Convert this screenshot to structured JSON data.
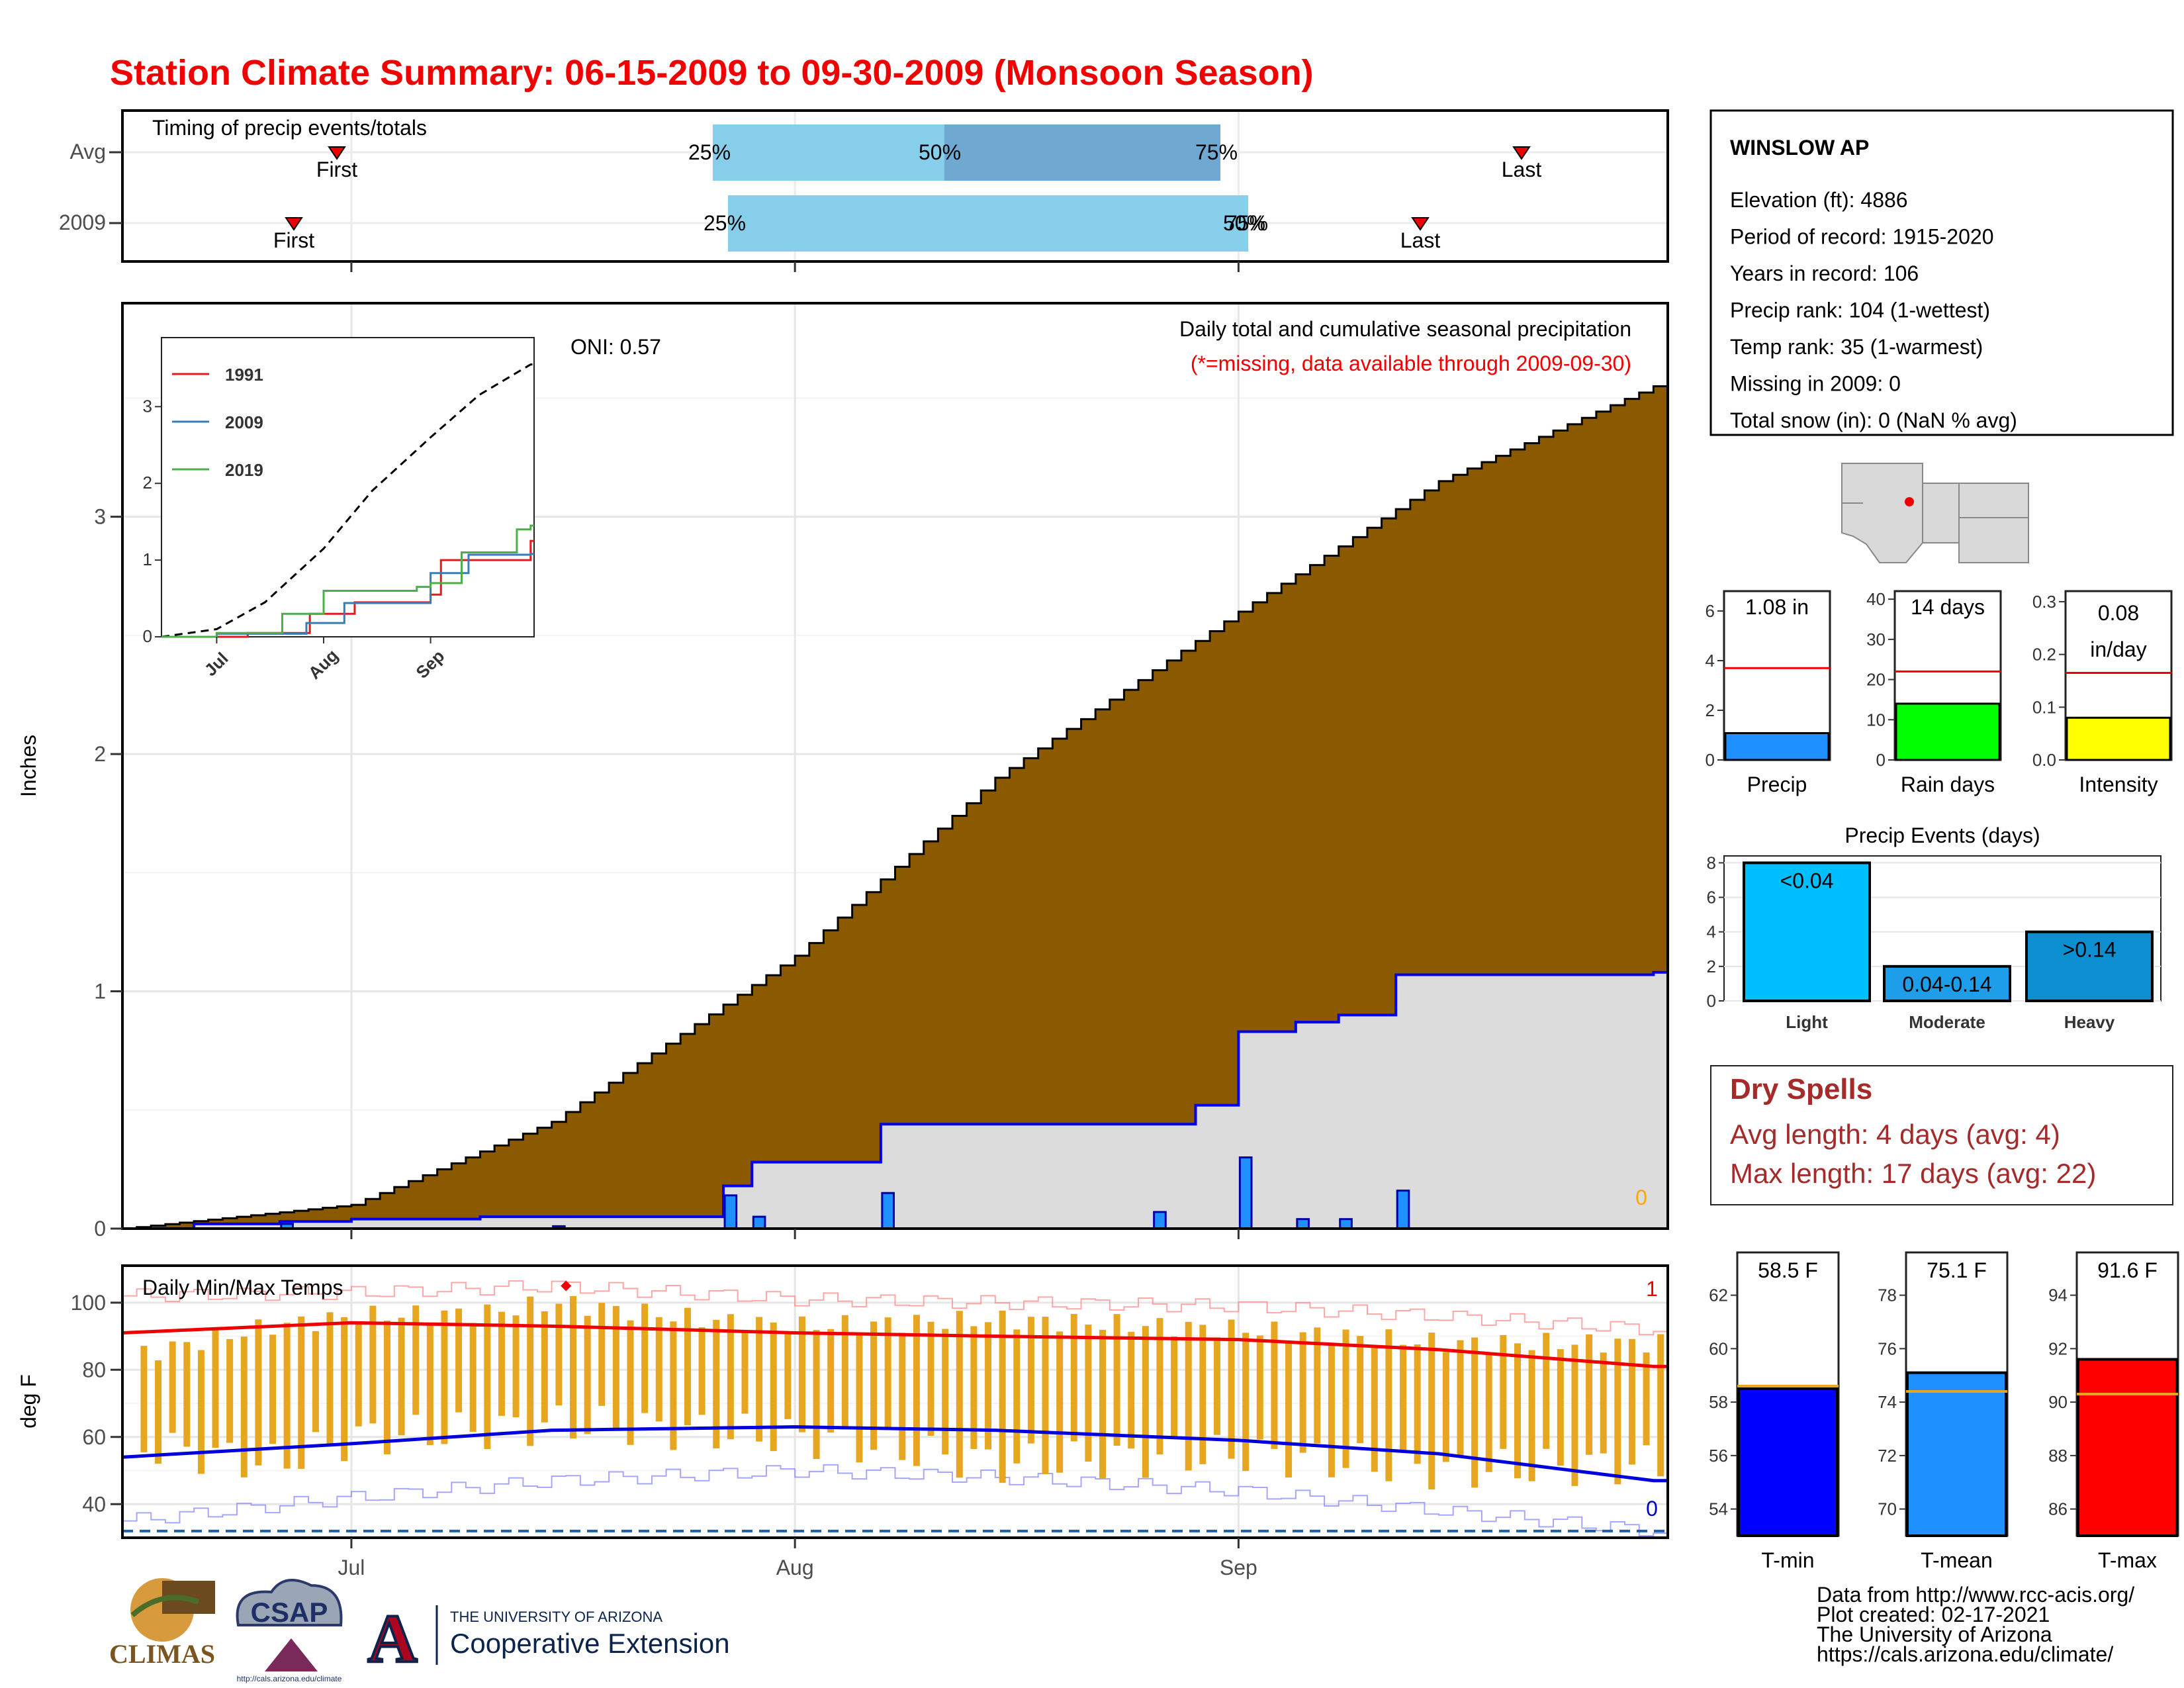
{
  "title": "Station Climate Summary: 06-15-2009 to 09-30-2009 (Monsoon Season)",
  "timing": {
    "label": "Timing of precip events/totals",
    "rows": [
      {
        "name": "Avg",
        "first_label": "First",
        "last_label": "Last",
        "p25": "25%",
        "p50": "50%",
        "p75": "75%"
      },
      {
        "name": "2009",
        "first_label": "First",
        "last_label": "Last",
        "p25": "25%",
        "p50": "50%",
        "p75": "75%"
      }
    ]
  },
  "precip_panel": {
    "caption": "Daily total and cumulative seasonal precipitation",
    "missing_note": "(*=missing, data available through 2009-09-30)",
    "oni": "ONI: 0.57",
    "ylabel": "Inches",
    "corner_count": "0"
  },
  "inset": {
    "legend": [
      {
        "name": "1991",
        "color": "#e41a1c"
      },
      {
        "name": "2009",
        "color": "#377eb8"
      },
      {
        "name": "2019",
        "color": "#4daf4a"
      }
    ],
    "xticks": [
      "Jul",
      "Aug",
      "Sep"
    ],
    "yticks": [
      "0",
      "1",
      "2",
      "3"
    ]
  },
  "temp_panel": {
    "label": "Daily Min/Max Temps",
    "ylabel": "deg F",
    "max_count": "1",
    "min_count": "0"
  },
  "xaxis": {
    "ticks": [
      "Jul",
      "Aug",
      "Sep"
    ]
  },
  "station": {
    "name": "WINSLOW AP",
    "lines": [
      "Elevation (ft): 4886",
      "Period of record: 1915-2020",
      "Years in record: 106",
      "Precip rank: 104 (1-wettest)",
      "Temp rank: 35 (1-warmest)",
      "Missing in 2009: 0",
      "Total snow (in): 0 (NaN % avg)"
    ]
  },
  "mini_bars": [
    {
      "label": "Precip",
      "value_text": "1.08 in",
      "value": 1.08,
      "avg": 3.7,
      "ymax": 6.8,
      "ticks": [
        "0",
        "2",
        "4",
        "6"
      ],
      "color": "#1e90ff"
    },
    {
      "label": "Rain days",
      "value_text": "14 days",
      "value": 14,
      "avg": 22,
      "ymax": 42,
      "ticks": [
        "0",
        "10",
        "20",
        "30",
        "40"
      ],
      "color": "#00ff00"
    },
    {
      "label": "Intensity",
      "value_text": "0.08 in/day",
      "value": 0.08,
      "avg": 0.165,
      "ymax": 0.32,
      "ticks": [
        "0.0",
        "0.1",
        "0.2",
        "0.3"
      ],
      "color": "#ffff00"
    }
  ],
  "precip_events": {
    "title": "Precip Events (days)",
    "ticks": [
      "0",
      "2",
      "4",
      "6",
      "8"
    ],
    "bars": [
      {
        "label": "Light",
        "text": "<0.04",
        "value": 8,
        "color": "#00bfff"
      },
      {
        "label": "Moderate",
        "text": "0.04-0.14",
        "value": 2,
        "color": "#1e9ee8"
      },
      {
        "label": "Heavy",
        "text": ">0.14",
        "value": 4,
        "color": "#0b8fd0"
      }
    ]
  },
  "dry_spells": {
    "title": "Dry Spells",
    "avg_line": "Avg length: 4 days (avg: 4)",
    "max_line": "Max length: 17 days (avg: 22)"
  },
  "temp_bars": [
    {
      "label": "T-min",
      "value_text": "58.5 F",
      "value": 58.5,
      "avg": 58.6,
      "min": 53,
      "max": 63.6,
      "ticks": [
        "54",
        "56",
        "58",
        "60",
        "62"
      ],
      "color": "#0000ff"
    },
    {
      "label": "T-mean",
      "value_text": "75.1 F",
      "value": 75.1,
      "avg": 74.4,
      "min": 69,
      "max": 79.6,
      "ticks": [
        "70",
        "72",
        "74",
        "76",
        "78"
      ],
      "color": "#1e90ff"
    },
    {
      "label": "T-max",
      "value_text": "91.6 F",
      "value": 91.6,
      "avg": 90.3,
      "min": 85,
      "max": 95.6,
      "ticks": [
        "86",
        "88",
        "90",
        "92",
        "94"
      ],
      "color": "#ff0000"
    }
  ],
  "credits": [
    "Data from http://www.rcc-acis.org/",
    "Plot created: 02-17-2021",
    "The University of Arizona",
    "https://cals.arizona.edu/climate/"
  ],
  "logos": {
    "climas": "CLIMAS",
    "csap": "CSAP",
    "csap_url": "http://cals.arizona.edu/climate",
    "ua_line1": "THE UNIVERSITY OF ARIZONA",
    "ua_line2": "Cooperative Extension",
    "ua_letter": "A"
  },
  "chart_data": [
    {
      "type": "area",
      "title": "Daily total and cumulative seasonal precipitation",
      "ylabel": "Inches",
      "ylim": [
        0,
        3.9
      ],
      "x_range": [
        "2009-06-15",
        "2009-09-30"
      ],
      "series": [
        {
          "name": "Average cumulative",
          "points": [
            [
              "2009-06-15",
              0
            ],
            [
              "2009-07-01",
              0.1
            ],
            [
              "2009-07-15",
              0.45
            ],
            [
              "2009-08-01",
              1.15
            ],
            [
              "2009-08-15",
              1.9
            ],
            [
              "2009-09-01",
              2.6
            ],
            [
              "2009-09-15",
              3.15
            ],
            [
              "2009-09-30",
              3.55
            ]
          ]
        },
        {
          "name": "2009 cumulative",
          "points": [
            [
              "2009-06-15",
              0
            ],
            [
              "2009-06-20",
              0.02
            ],
            [
              "2009-06-26",
              0.03
            ],
            [
              "2009-07-01",
              0.04
            ],
            [
              "2009-07-10",
              0.05
            ],
            [
              "2009-07-27",
              0.18
            ],
            [
              "2009-07-29",
              0.28
            ],
            [
              "2009-08-07",
              0.44
            ],
            [
              "2009-08-29",
              0.52
            ],
            [
              "2009-09-01",
              0.83
            ],
            [
              "2009-09-05",
              0.87
            ],
            [
              "2009-09-08",
              0.9
            ],
            [
              "2009-09-12",
              1.07
            ],
            [
              "2009-09-30",
              1.08
            ]
          ]
        },
        {
          "name": "2009 daily",
          "points": [
            [
              "2009-06-26",
              0.02
            ],
            [
              "2009-07-15",
              0.01
            ],
            [
              "2009-07-27",
              0.14
            ],
            [
              "2009-07-29",
              0.05
            ],
            [
              "2009-08-07",
              0.15
            ],
            [
              "2009-08-26",
              0.07
            ],
            [
              "2009-09-01",
              0.3
            ],
            [
              "2009-09-05",
              0.04
            ],
            [
              "2009-09-08",
              0.04
            ],
            [
              "2009-09-12",
              0.16
            ]
          ]
        }
      ]
    },
    {
      "type": "line",
      "ylim": [
        0,
        3.9
      ],
      "xticks": [
        "Jul",
        "Aug",
        "Sep"
      ],
      "series": [
        {
          "name": "Average",
          "points": [
            [
              "2009-06-15",
              0
            ],
            [
              "2009-07-01",
              0.1
            ],
            [
              "2009-07-15",
              0.45
            ],
            [
              "2009-08-01",
              1.15
            ],
            [
              "2009-08-15",
              1.9
            ],
            [
              "2009-09-01",
              2.6
            ],
            [
              "2009-09-15",
              3.15
            ],
            [
              "2009-09-30",
              3.55
            ]
          ]
        },
        {
          "name": "1991",
          "points": [
            [
              "2009-06-15",
              0
            ],
            [
              "2009-07-10",
              0.05
            ],
            [
              "2009-07-28",
              0.3
            ],
            [
              "2009-08-10",
              0.45
            ],
            [
              "2009-09-01",
              0.55
            ],
            [
              "2009-09-04",
              1.0
            ],
            [
              "2009-09-30",
              1.25
            ]
          ]
        },
        {
          "name": "2009",
          "points": [
            [
              "2009-06-15",
              0
            ],
            [
              "2009-07-01",
              0.04
            ],
            [
              "2009-07-27",
              0.18
            ],
            [
              "2009-08-07",
              0.44
            ],
            [
              "2009-09-01",
              0.83
            ],
            [
              "2009-09-12",
              1.07
            ],
            [
              "2009-09-30",
              1.08
            ]
          ]
        },
        {
          "name": "2019",
          "points": [
            [
              "2009-06-15",
              0
            ],
            [
              "2009-07-01",
              0.05
            ],
            [
              "2009-07-20",
              0.3
            ],
            [
              "2009-08-01",
              0.6
            ],
            [
              "2009-08-28",
              0.65
            ],
            [
              "2009-09-01",
              0.7
            ],
            [
              "2009-09-10",
              1.1
            ],
            [
              "2009-09-26",
              1.4
            ],
            [
              "2009-09-30",
              1.45
            ]
          ]
        }
      ]
    },
    {
      "type": "line",
      "title": "Daily Min/Max Temps",
      "ylabel": "deg F",
      "ylim": [
        30,
        111
      ],
      "series": [
        {
          "name": "Avg max",
          "points": [
            [
              "2009-06-15",
              91
            ],
            [
              "2009-07-01",
              94
            ],
            [
              "2009-07-15",
              93
            ],
            [
              "2009-08-01",
              91
            ],
            [
              "2009-08-15",
              90
            ],
            [
              "2009-09-01",
              89
            ],
            [
              "2009-09-15",
              86
            ],
            [
              "2009-09-30",
              81
            ]
          ]
        },
        {
          "name": "Avg min",
          "points": [
            [
              "2009-06-15",
              54
            ],
            [
              "2009-07-01",
              58
            ],
            [
              "2009-07-15",
              62
            ],
            [
              "2009-08-01",
              63
            ],
            [
              "2009-08-15",
              62
            ],
            [
              "2009-09-01",
              59
            ],
            [
              "2009-09-15",
              55
            ],
            [
              "2009-09-30",
              47
            ]
          ]
        },
        {
          "name": "Record high",
          "points": [
            [
              "2009-06-15",
              102
            ],
            [
              "2009-07-01",
              103
            ],
            [
              "2009-07-15",
              105
            ],
            [
              "2009-08-01",
              101
            ],
            [
              "2009-08-15",
              100
            ],
            [
              "2009-09-01",
              99
            ],
            [
              "2009-09-15",
              96
            ],
            [
              "2009-09-30",
              92
            ]
          ]
        },
        {
          "name": "Record low",
          "points": [
            [
              "2009-06-15",
              35
            ],
            [
              "2009-07-01",
              42
            ],
            [
              "2009-07-15",
              47
            ],
            [
              "2009-08-01",
              50
            ],
            [
              "2009-08-15",
              48
            ],
            [
              "2009-09-01",
              44
            ],
            [
              "2009-09-15",
              38
            ],
            [
              "2009-09-30",
              32
            ]
          ]
        },
        {
          "name": "2009 max",
          "points": [
            [
              "2009-06-15",
              84
            ],
            [
              "2009-06-25",
              93
            ],
            [
              "2009-07-01",
              96
            ],
            [
              "2009-07-10",
              97
            ],
            [
              "2009-07-15",
              100
            ],
            [
              "2009-07-25",
              95
            ],
            [
              "2009-08-01",
              93
            ],
            [
              "2009-08-15",
              95
            ],
            [
              "2009-09-01",
              92
            ],
            [
              "2009-09-15",
              88
            ],
            [
              "2009-09-30",
              88
            ]
          ]
        },
        {
          "name": "2009 min",
          "points": [
            [
              "2009-06-15",
              58
            ],
            [
              "2009-06-25",
              52
            ],
            [
              "2009-07-01",
              60
            ],
            [
              "2009-07-10",
              62
            ],
            [
              "2009-07-15",
              64
            ],
            [
              "2009-08-01",
              60
            ],
            [
              "2009-08-15",
              52
            ],
            [
              "2009-09-01",
              55
            ],
            [
              "2009-09-15",
              50
            ],
            [
              "2009-09-30",
              52
            ]
          ]
        }
      ],
      "marker": {
        "x": "2009-07-16",
        "y": 105
      }
    }
  ]
}
